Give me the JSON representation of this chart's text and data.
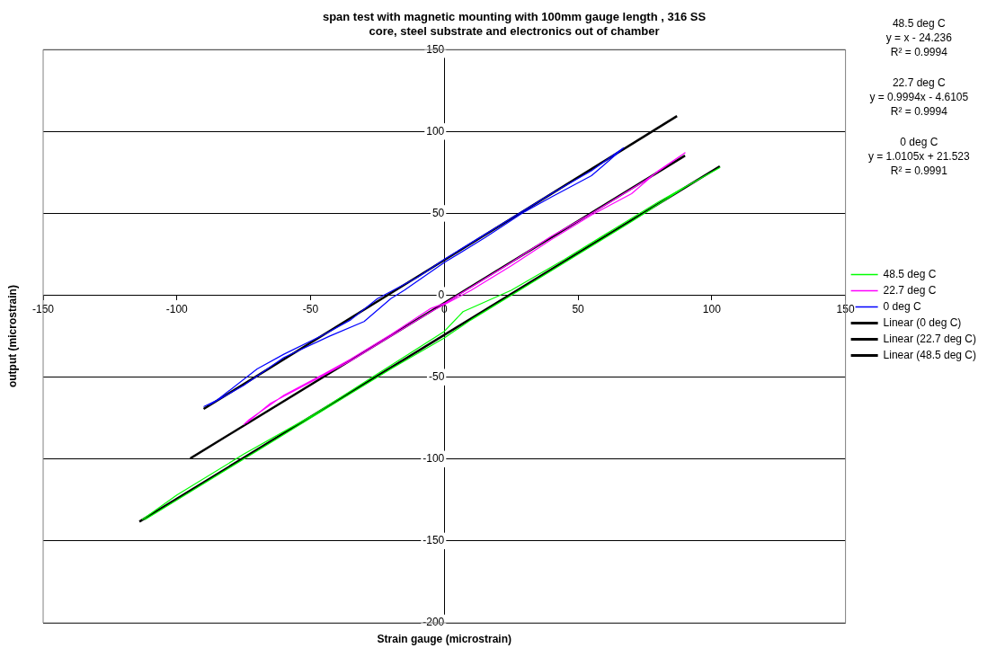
{
  "chart_data": {
    "type": "line",
    "title": "span test with magnetic mounting with 100mm gauge length , 316 SS core, steel substrate and electronics out of chamber",
    "xlabel": "Strain gauge (microstrain)",
    "ylabel": "output (microstrain)",
    "xlim": [
      -150,
      150
    ],
    "xticks": [
      -150,
      -100,
      -50,
      0,
      50,
      100,
      150
    ],
    "ylim": [
      -200,
      150
    ],
    "yticks": [
      -200,
      -150,
      -100,
      -50,
      0,
      50,
      100,
      150
    ],
    "grid": "y",
    "legend": "right",
    "marker": "none",
    "line_style": "solid",
    "annotations": [
      "48.5 deg C\ny = x - 24.236\nR² = 0.9994",
      "22.7 deg C\ny = 0.9994x - 4.6105\nR² = 0.9994",
      "0 deg C\ny = 1.0105x + 21.523\nR² = 0.9991"
    ],
    "series": [
      {
        "name": "48.5 deg C",
        "color": "#00ff00",
        "x": [
          -113,
          -100,
          -75,
          -50,
          -25,
          0,
          7,
          25,
          45,
          60,
          80,
          103,
          90,
          70,
          50,
          30,
          10,
          0,
          -20,
          -45,
          -70,
          -95,
          -112
        ],
        "values": [
          -137,
          -122,
          -97,
          -74,
          -48,
          -22,
          -10,
          3,
          22,
          37,
          57,
          78,
          66,
          45,
          25,
          5,
          -15,
          -26,
          -45,
          -70,
          -95,
          -120,
          -137
        ]
      },
      {
        "name": "22.7 deg C",
        "color": "#ff00ff",
        "x": [
          -75,
          -73,
          -60,
          -45,
          -35,
          -20,
          -5,
          0,
          10,
          25,
          40,
          55,
          75,
          90,
          80,
          70,
          55,
          40,
          25,
          10,
          -5,
          -20,
          -35,
          -50,
          -65,
          -74
        ],
        "values": [
          -79,
          -76,
          -61,
          -48,
          -39,
          -24,
          -8,
          -5,
          5,
          20,
          36,
          50,
          70,
          87,
          76,
          62,
          49,
          34,
          18,
          3,
          -10,
          -25,
          -40,
          -53,
          -66,
          -78
        ]
      },
      {
        "name": "0 deg C",
        "color": "#0000ff",
        "x": [
          -90,
          -85,
          -70,
          -60,
          -45,
          -35,
          -25,
          -10,
          0,
          15,
          30,
          40,
          55,
          67,
          60,
          55,
          40,
          30,
          15,
          0,
          -15,
          -20,
          -30,
          -43,
          -60,
          -75,
          -88
        ],
        "values": [
          -68,
          -64,
          -45,
          -36,
          -24,
          -15,
          -2,
          11,
          22,
          37,
          52,
          62,
          76,
          90,
          80,
          73,
          60,
          51,
          35,
          20,
          3,
          -2,
          -16,
          -25,
          -38,
          -55,
          -67
        ]
      },
      {
        "name": "Linear (0 deg C)",
        "color": "#000000",
        "type": "line",
        "x": [
          -90,
          87
        ],
        "values": [
          -69.4,
          109.4
        ]
      },
      {
        "name": "Linear (22.7 deg C)",
        "color": "#000000",
        "type": "line",
        "x": [
          -95,
          90
        ],
        "values": [
          -99.6,
          85.3
        ]
      },
      {
        "name": "Linear (48.5 deg C)",
        "color": "#000000",
        "type": "line",
        "x": [
          -114,
          103
        ],
        "values": [
          -138.2,
          78.8
        ]
      }
    ]
  }
}
